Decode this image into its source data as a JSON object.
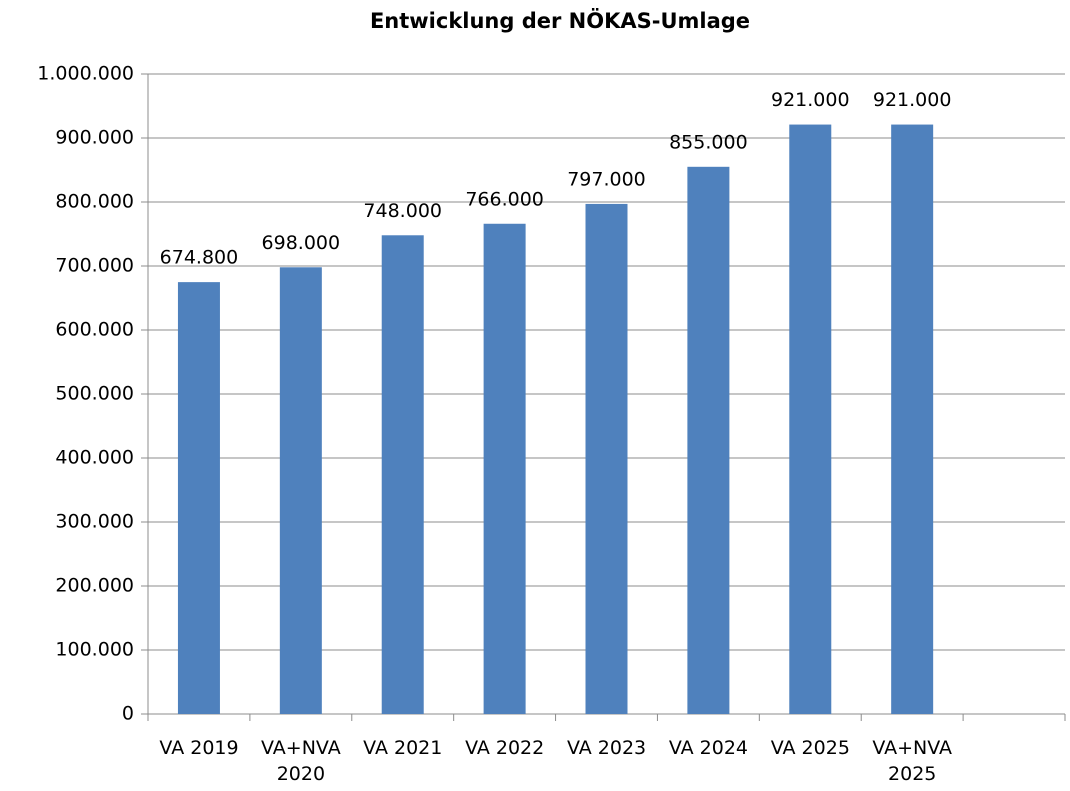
{
  "chart_data": {
    "type": "bar",
    "title": "Entwicklung der NÖKAS-Umlage",
    "categories": [
      "VA 2019",
      "VA+NVA 2020",
      "VA 2021",
      "VA 2022",
      "VA 2023",
      "VA 2024",
      "VA 2025",
      "VA+NVA 2025",
      null
    ],
    "values": [
      674800,
      698000,
      748000,
      766000,
      797000,
      855000,
      921000,
      921000,
      null
    ],
    "value_labels": [
      "674.800",
      "698.000",
      "748.000",
      "766.000",
      "797.000",
      "855.000",
      "921.000",
      "921.000",
      null
    ],
    "color": "#4f81bd",
    "ylim": [
      0,
      1000000
    ],
    "yticks": [
      0,
      {
        "value": 100000,
        "label": "100.000"
      },
      {
        "value": 200000,
        "label": "200.000"
      },
      {
        "value": 300000,
        "label": "300.000"
      },
      {
        "value": 400000,
        "label": "400.000"
      },
      {
        "value": 500000,
        "label": "500.000"
      },
      {
        "value": 600000,
        "label": "600.000"
      },
      {
        "value": 700000,
        "label": "700.000"
      },
      {
        "value": 800000,
        "label": "800.000"
      },
      {
        "value": 900000,
        "label": "900.000"
      },
      {
        "value": 1000000,
        "label": "1.000.000"
      }
    ],
    "grid": true
  }
}
